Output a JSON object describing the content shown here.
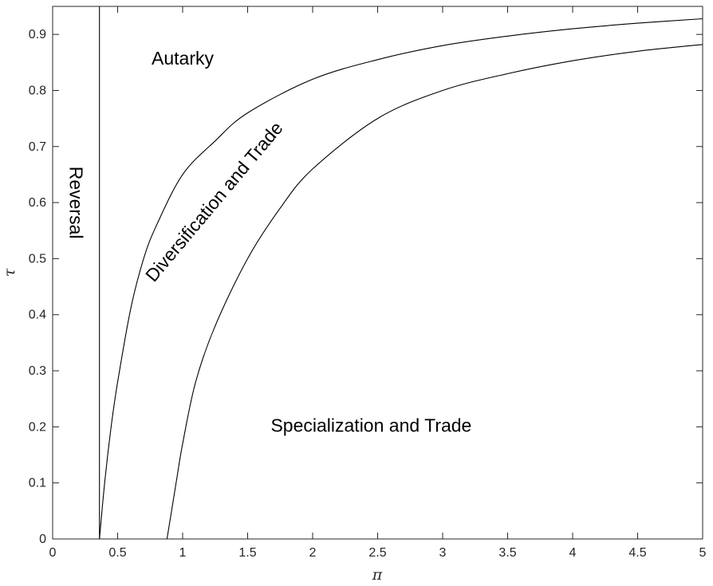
{
  "chart_data": {
    "type": "line",
    "title": "",
    "xlabel": "π",
    "ylabel": "τ",
    "xlim": [
      0,
      5
    ],
    "ylim": [
      0,
      0.95
    ],
    "grid": false,
    "xticks": [
      0,
      0.5,
      1,
      1.5,
      2,
      2.5,
      3,
      3.5,
      4,
      4.5,
      5
    ],
    "xtick_labels": [
      "0",
      "0.5",
      "1",
      "1.5",
      "2",
      "2.5",
      "3",
      "3.5",
      "4",
      "4.5",
      "5"
    ],
    "yticks": [
      0,
      0.1,
      0.2,
      0.3,
      0.4,
      0.5,
      0.6,
      0.7,
      0.8,
      0.9
    ],
    "ytick_labels": [
      "0",
      "0.1",
      "0.2",
      "0.3",
      "0.4",
      "0.5",
      "0.6",
      "0.7",
      "0.8",
      "0.9"
    ],
    "series": [
      {
        "x": [
          0.36,
          0.4,
          0.45,
          0.5,
          0.6,
          0.7,
          0.8,
          1.0,
          1.25,
          1.5,
          2.0,
          2.5,
          3.0,
          3.5,
          4.0,
          4.5,
          5.0
        ],
        "y": [
          0.0,
          0.1,
          0.2,
          0.28,
          0.41,
          0.5,
          0.56,
          0.65,
          0.71,
          0.76,
          0.82,
          0.855,
          0.88,
          0.897,
          0.91,
          0.92,
          0.928
        ],
        "color": "#000000"
      },
      {
        "x": [
          0.88,
          0.95,
          1.0,
          1.1,
          1.25,
          1.5,
          1.75,
          2.0,
          2.5,
          3.0,
          3.5,
          4.0,
          4.5,
          5.0
        ],
        "y": [
          0.0,
          0.1,
          0.17,
          0.28,
          0.38,
          0.5,
          0.59,
          0.66,
          0.75,
          0.8,
          0.83,
          0.853,
          0.87,
          0.882
        ],
        "color": "#000000"
      },
      {
        "x": [
          0.36,
          0.36
        ],
        "y": [
          0,
          0.95
        ],
        "color": "#000000"
      }
    ],
    "annotations": [
      {
        "text": "Autarky",
        "x": 1.0,
        "y": 0.855,
        "rotation": 0
      },
      {
        "text": "Reversal",
        "x": 0.17,
        "y": 0.6,
        "rotation": 90
      },
      {
        "text": "Diversification and Trade",
        "x": 1.25,
        "y": 0.6,
        "rotation": -50
      },
      {
        "text": "Specialization and Trade",
        "x": 2.45,
        "y": 0.2,
        "rotation": 0
      }
    ]
  }
}
